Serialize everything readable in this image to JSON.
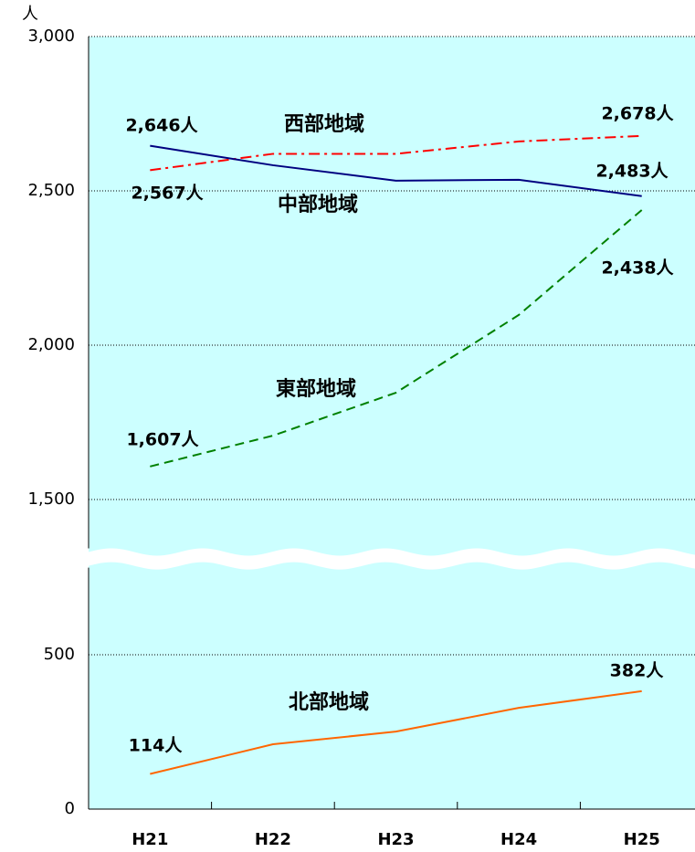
{
  "chart_data": {
    "type": "line",
    "y_unit": "人",
    "categories": [
      "H21",
      "H22",
      "H23",
      "H24",
      "H25"
    ],
    "ylim": [
      0,
      3000
    ],
    "axis_break": [
      800,
      1330
    ],
    "yticks": [
      0,
      500,
      {
        "value": 1500,
        "label": "1,500"
      },
      {
        "value": 2000,
        "label": "2,000"
      },
      {
        "value": 2500,
        "label": "2,500"
      },
      {
        "value": 3000,
        "label": "3,000"
      }
    ],
    "grid": true,
    "background": "#ccffff",
    "series": [
      {
        "name": "西部地域",
        "color": "#ff0000",
        "dash": "dashdot",
        "values": [
          2567,
          2620,
          2620,
          2660,
          2678
        ],
        "value_labels": [
          "2,567人",
          null,
          null,
          null,
          "2,678人"
        ]
      },
      {
        "name": "中部地域",
        "color": "#000080",
        "dash": "solid",
        "values": [
          2646,
          2583,
          2533,
          2536,
          2483
        ],
        "value_labels": [
          "2,646人",
          null,
          null,
          null,
          "2,483人"
        ]
      },
      {
        "name": "東部地域",
        "color": "#008000",
        "dash": "dashed",
        "values": [
          1607,
          1707,
          1846,
          2098,
          2438
        ],
        "value_labels": [
          "1,607人",
          null,
          null,
          null,
          "2,438人"
        ]
      },
      {
        "name": "北部地域",
        "color": "#ff6600",
        "dash": "solid",
        "values": [
          114,
          210,
          251,
          328,
          382
        ],
        "value_labels": [
          "114人",
          null,
          null,
          null,
          "382人"
        ]
      }
    ]
  }
}
